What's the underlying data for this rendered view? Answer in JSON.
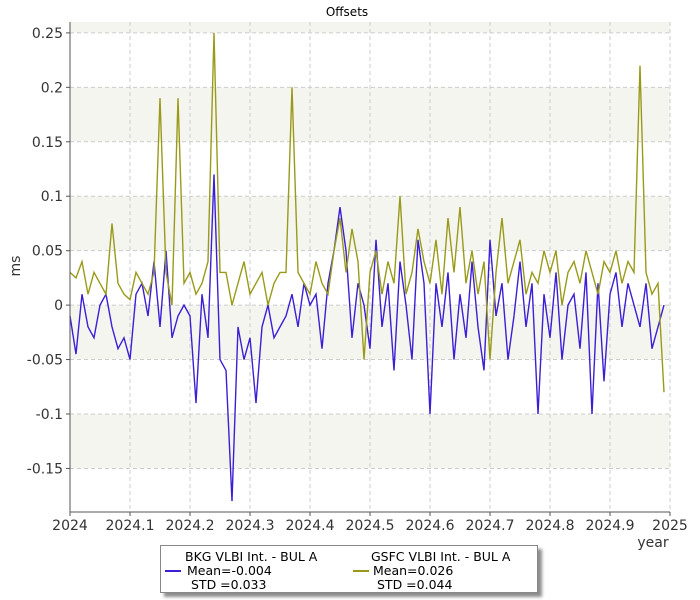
{
  "chart_data": {
    "type": "line",
    "title": "Offsets",
    "xlabel": "year",
    "ylabel": "ms",
    "xlim": [
      2024,
      2025
    ],
    "ylim": [
      -0.19,
      0.26
    ],
    "x_ticks": [
      "2024",
      "2024.1",
      "2024.2",
      "2024.3",
      "2024.4",
      "2024.5",
      "2024.6",
      "2024.7",
      "2024.8",
      "2024.9",
      "2025"
    ],
    "y_ticks": [
      "0.25",
      "0.2",
      "0.15",
      "0.1",
      "0.05",
      "0",
      "-0.05",
      "-0.1",
      "-0.15"
    ],
    "grid": true,
    "legend_position": "bottom",
    "series": [
      {
        "name": "BKG VLBI Int. - BUL A",
        "mean_label": "Mean=-0.004",
        "std_label": "STD =0.033",
        "color": "#3a1fd6",
        "points": [
          [
            2024.0,
            -0.01
          ],
          [
            2024.01,
            -0.045
          ],
          [
            2024.02,
            0.01
          ],
          [
            2024.03,
            -0.02
          ],
          [
            2024.04,
            -0.03
          ],
          [
            2024.05,
            0.0
          ],
          [
            2024.06,
            0.01
          ],
          [
            2024.07,
            -0.02
          ],
          [
            2024.08,
            -0.04
          ],
          [
            2024.09,
            -0.03
          ],
          [
            2024.1,
            -0.05
          ],
          [
            2024.11,
            0.01
          ],
          [
            2024.12,
            0.02
          ],
          [
            2024.13,
            -0.01
          ],
          [
            2024.14,
            0.04
          ],
          [
            2024.15,
            -0.02
          ],
          [
            2024.16,
            0.05
          ],
          [
            2024.17,
            -0.03
          ],
          [
            2024.18,
            -0.01
          ],
          [
            2024.19,
            0.0
          ],
          [
            2024.2,
            -0.01
          ],
          [
            2024.21,
            -0.09
          ],
          [
            2024.22,
            0.01
          ],
          [
            2024.23,
            -0.03
          ],
          [
            2024.24,
            0.12
          ],
          [
            2024.25,
            -0.05
          ],
          [
            2024.26,
            -0.06
          ],
          [
            2024.27,
            -0.18
          ],
          [
            2024.28,
            -0.02
          ],
          [
            2024.29,
            -0.05
          ],
          [
            2024.3,
            -0.03
          ],
          [
            2024.31,
            -0.09
          ],
          [
            2024.32,
            -0.02
          ],
          [
            2024.33,
            0.0
          ],
          [
            2024.34,
            -0.03
          ],
          [
            2024.35,
            -0.02
          ],
          [
            2024.36,
            -0.01
          ],
          [
            2024.37,
            0.01
          ],
          [
            2024.38,
            -0.02
          ],
          [
            2024.39,
            0.02
          ],
          [
            2024.4,
            0.0
          ],
          [
            2024.41,
            0.01
          ],
          [
            2024.42,
            -0.04
          ],
          [
            2024.43,
            0.02
          ],
          [
            2024.44,
            0.05
          ],
          [
            2024.45,
            0.09
          ],
          [
            2024.46,
            0.05
          ],
          [
            2024.47,
            -0.03
          ],
          [
            2024.48,
            0.02
          ],
          [
            2024.49,
            0.0
          ],
          [
            2024.5,
            -0.04
          ],
          [
            2024.51,
            0.06
          ],
          [
            2024.52,
            -0.02
          ],
          [
            2024.53,
            0.02
          ],
          [
            2024.54,
            -0.06
          ],
          [
            2024.55,
            0.04
          ],
          [
            2024.56,
            0.0
          ],
          [
            2024.57,
            -0.05
          ],
          [
            2024.58,
            0.06
          ],
          [
            2024.59,
            0.02
          ],
          [
            2024.6,
            -0.1
          ],
          [
            2024.61,
            0.02
          ],
          [
            2024.62,
            -0.02
          ],
          [
            2024.63,
            0.03
          ],
          [
            2024.64,
            -0.05
          ],
          [
            2024.65,
            0.01
          ],
          [
            2024.66,
            -0.03
          ],
          [
            2024.67,
            0.04
          ],
          [
            2024.68,
            -0.02
          ],
          [
            2024.69,
            -0.06
          ],
          [
            2024.7,
            0.06
          ],
          [
            2024.71,
            -0.01
          ],
          [
            2024.72,
            0.02
          ],
          [
            2024.73,
            -0.05
          ],
          [
            2024.74,
            -0.01
          ],
          [
            2024.75,
            0.04
          ],
          [
            2024.76,
            -0.02
          ],
          [
            2024.77,
            0.02
          ],
          [
            2024.78,
            -0.1
          ],
          [
            2024.79,
            0.01
          ],
          [
            2024.8,
            -0.03
          ],
          [
            2024.81,
            0.03
          ],
          [
            2024.82,
            -0.05
          ],
          [
            2024.83,
            0.0
          ],
          [
            2024.84,
            0.01
          ],
          [
            2024.85,
            -0.04
          ],
          [
            2024.86,
            0.03
          ],
          [
            2024.87,
            -0.1
          ],
          [
            2024.88,
            0.02
          ],
          [
            2024.89,
            -0.07
          ],
          [
            2024.9,
            0.01
          ],
          [
            2024.91,
            0.03
          ],
          [
            2024.92,
            -0.02
          ],
          [
            2024.93,
            0.02
          ],
          [
            2024.94,
            0.0
          ],
          [
            2024.95,
            -0.02
          ],
          [
            2024.96,
            0.02
          ],
          [
            2024.97,
            -0.04
          ],
          [
            2024.98,
            -0.02
          ],
          [
            2024.99,
            0.0
          ]
        ]
      },
      {
        "name": "GSFC VLBI Int. - BUL A",
        "mean_label": "Mean=0.026",
        "std_label": "STD =0.044",
        "color": "#9a9a1a",
        "points": [
          [
            2024.0,
            0.03
          ],
          [
            2024.01,
            0.025
          ],
          [
            2024.02,
            0.04
          ],
          [
            2024.03,
            0.01
          ],
          [
            2024.04,
            0.03
          ],
          [
            2024.05,
            0.02
          ],
          [
            2024.06,
            0.01
          ],
          [
            2024.07,
            0.075
          ],
          [
            2024.08,
            0.02
          ],
          [
            2024.09,
            0.01
          ],
          [
            2024.1,
            0.005
          ],
          [
            2024.11,
            0.03
          ],
          [
            2024.12,
            0.02
          ],
          [
            2024.13,
            0.01
          ],
          [
            2024.14,
            0.03
          ],
          [
            2024.15,
            0.19
          ],
          [
            2024.16,
            0.03
          ],
          [
            2024.17,
            0.0
          ],
          [
            2024.18,
            0.19
          ],
          [
            2024.19,
            0.02
          ],
          [
            2024.2,
            0.03
          ],
          [
            2024.21,
            0.01
          ],
          [
            2024.22,
            0.02
          ],
          [
            2024.23,
            0.04
          ],
          [
            2024.24,
            0.25
          ],
          [
            2024.25,
            0.03
          ],
          [
            2024.26,
            0.03
          ],
          [
            2024.27,
            0.0
          ],
          [
            2024.28,
            0.02
          ],
          [
            2024.29,
            0.04
          ],
          [
            2024.3,
            0.01
          ],
          [
            2024.31,
            0.02
          ],
          [
            2024.32,
            0.03
          ],
          [
            2024.33,
            0.0
          ],
          [
            2024.34,
            0.02
          ],
          [
            2024.35,
            0.03
          ],
          [
            2024.36,
            0.03
          ],
          [
            2024.37,
            0.2
          ],
          [
            2024.38,
            0.03
          ],
          [
            2024.39,
            0.02
          ],
          [
            2024.4,
            0.01
          ],
          [
            2024.41,
            0.04
          ],
          [
            2024.42,
            0.02
          ],
          [
            2024.43,
            0.01
          ],
          [
            2024.44,
            0.05
          ],
          [
            2024.45,
            0.08
          ],
          [
            2024.46,
            0.03
          ],
          [
            2024.47,
            0.07
          ],
          [
            2024.48,
            0.04
          ],
          [
            2024.49,
            -0.05
          ],
          [
            2024.5,
            0.03
          ],
          [
            2024.51,
            0.05
          ],
          [
            2024.52,
            0.01
          ],
          [
            2024.53,
            0.04
          ],
          [
            2024.54,
            0.02
          ],
          [
            2024.55,
            0.1
          ],
          [
            2024.56,
            0.01
          ],
          [
            2024.57,
            0.03
          ],
          [
            2024.58,
            0.07
          ],
          [
            2024.59,
            0.04
          ],
          [
            2024.6,
            0.02
          ],
          [
            2024.61,
            0.06
          ],
          [
            2024.62,
            0.01
          ],
          [
            2024.63,
            0.08
          ],
          [
            2024.64,
            0.03
          ],
          [
            2024.65,
            0.09
          ],
          [
            2024.66,
            0.02
          ],
          [
            2024.67,
            0.05
          ],
          [
            2024.68,
            0.01
          ],
          [
            2024.69,
            0.04
          ],
          [
            2024.7,
            -0.05
          ],
          [
            2024.71,
            0.03
          ],
          [
            2024.72,
            0.08
          ],
          [
            2024.73,
            0.02
          ],
          [
            2024.74,
            0.04
          ],
          [
            2024.75,
            0.06
          ],
          [
            2024.76,
            0.01
          ],
          [
            2024.77,
            0.03
          ],
          [
            2024.78,
            0.02
          ],
          [
            2024.79,
            0.05
          ],
          [
            2024.8,
            0.03
          ],
          [
            2024.81,
            0.05
          ],
          [
            2024.82,
            0.0
          ],
          [
            2024.83,
            0.03
          ],
          [
            2024.84,
            0.04
          ],
          [
            2024.85,
            0.02
          ],
          [
            2024.86,
            0.05
          ],
          [
            2024.87,
            0.03
          ],
          [
            2024.88,
            0.01
          ],
          [
            2024.89,
            0.04
          ],
          [
            2024.9,
            0.03
          ],
          [
            2024.91,
            0.05
          ],
          [
            2024.92,
            0.02
          ],
          [
            2024.93,
            0.04
          ],
          [
            2024.94,
            0.03
          ],
          [
            2024.95,
            0.22
          ],
          [
            2024.96,
            0.03
          ],
          [
            2024.97,
            0.01
          ],
          [
            2024.98,
            0.02
          ],
          [
            2024.99,
            -0.08
          ]
        ]
      }
    ]
  }
}
